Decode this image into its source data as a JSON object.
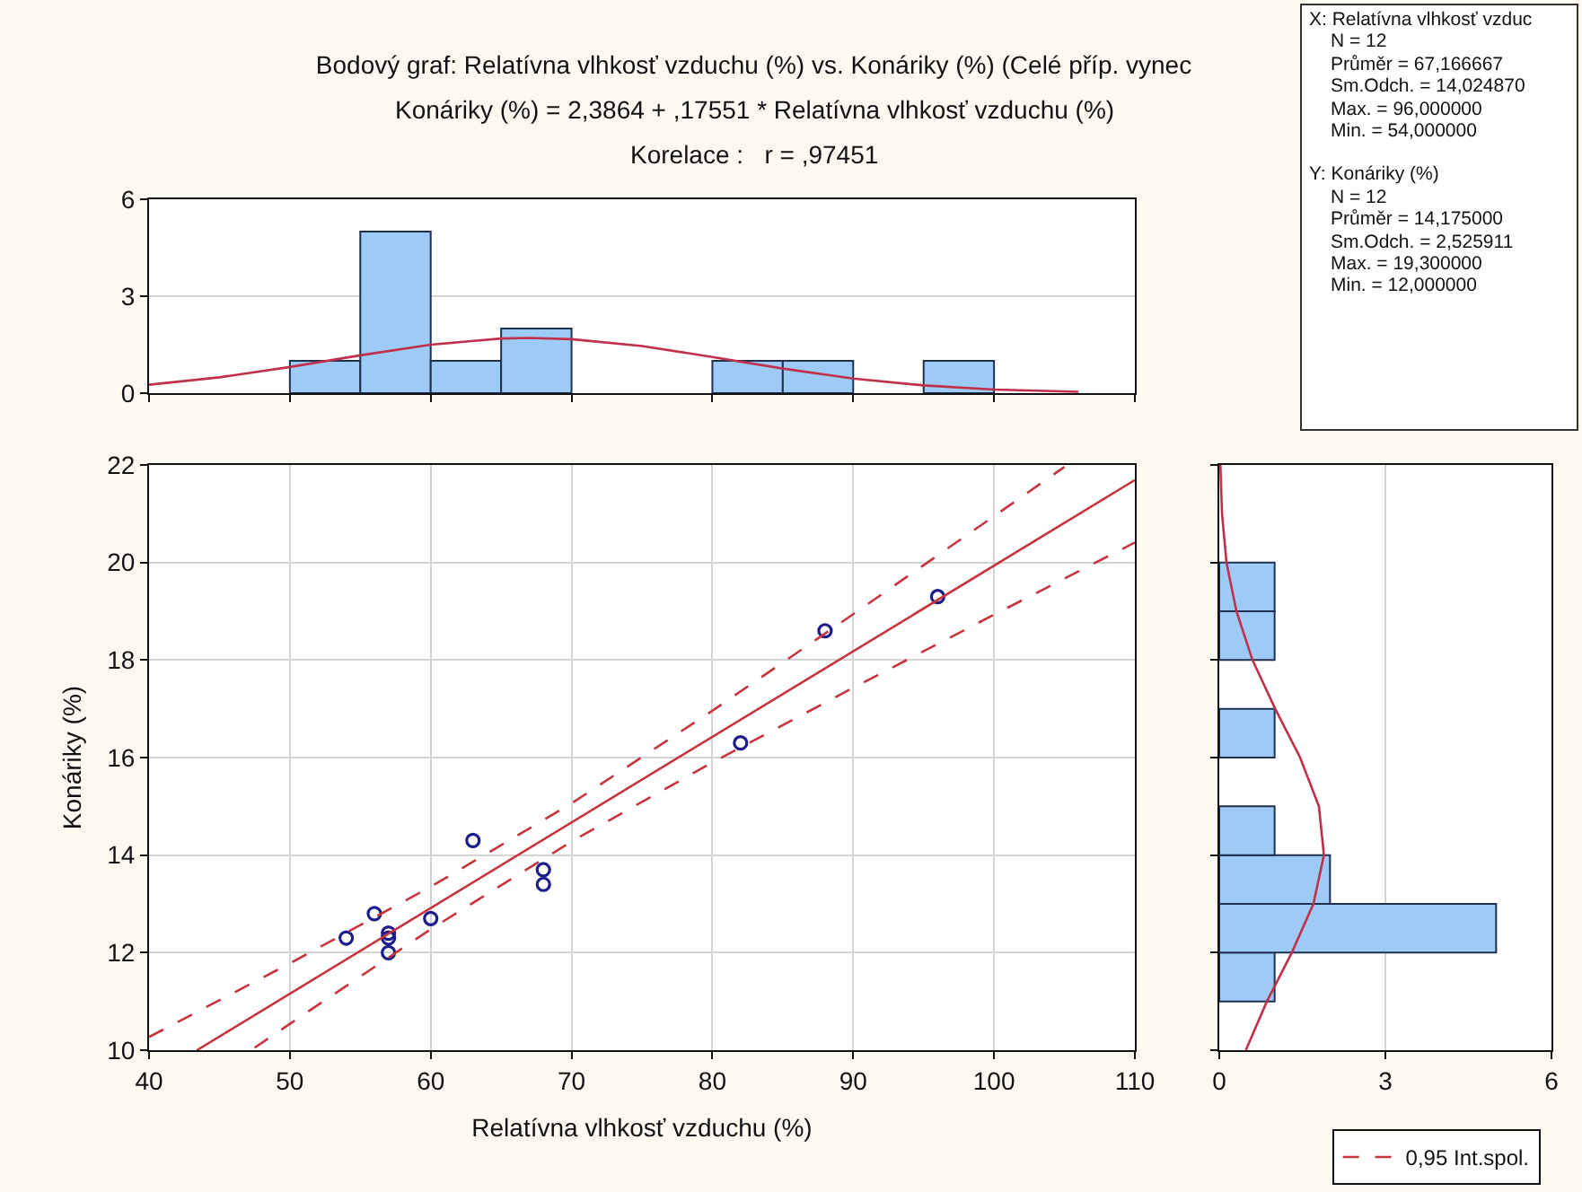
{
  "chart_data": [
    {
      "type": "histogram",
      "title": "Bodový graf: Relatívna vlhkosť vzduchu (%) vs. Konáriky (%) (Celé příp. vynec",
      "subtitle": "Konáriky (%) = 2,3864 + ,17551 * Relatívna vlhkosť vzduchu (%)",
      "annotations": [
        "Korelace :   r = ,97451"
      ],
      "bins": [
        50,
        55,
        60,
        65,
        70,
        75,
        80,
        85,
        90,
        95,
        100
      ],
      "values": [
        1,
        5,
        1,
        2,
        0,
        0,
        1,
        1,
        0,
        1
      ],
      "color": "#9ecbf5",
      "xlim": [
        40,
        110
      ],
      "ylim": [
        0,
        6
      ],
      "yticks": [
        0,
        3,
        6
      ],
      "grid": "y",
      "tick_labels": "y",
      "series": [
        {
          "type": "line",
          "color": "#c0304a",
          "x": [
            40,
            45,
            50,
            55,
            60,
            65,
            67,
            70,
            75,
            80,
            85,
            90,
            95,
            100,
            106
          ],
          "values": [
            0.26,
            0.49,
            0.81,
            1.17,
            1.5,
            1.69,
            1.71,
            1.67,
            1.46,
            1.12,
            0.76,
            0.45,
            0.24,
            0.11,
            0.04
          ]
        }
      ]
    },
    {
      "type": "scatter",
      "xlabel": "Relatívna vlhkosť vzduchu (%)",
      "ylabel": "Konáriky (%)",
      "xlim": [
        40,
        110
      ],
      "ylim": [
        10,
        22
      ],
      "xticks": [
        40,
        50,
        60,
        70,
        80,
        90,
        100,
        110
      ],
      "yticks": [
        10,
        12,
        14,
        16,
        18,
        20,
        22
      ],
      "grid": true,
      "legend": "bottom right",
      "series": [
        {
          "type": "scatter",
          "marker": "circle",
          "color": "#1c1c8a",
          "x": [
            54,
            56,
            57,
            57,
            57,
            60,
            63,
            68,
            68,
            82,
            88,
            96
          ],
          "values": [
            12.3,
            12.8,
            12.4,
            12.3,
            12.0,
            12.7,
            14.3,
            13.7,
            13.4,
            16.3,
            18.6,
            19.3
          ]
        },
        {
          "type": "line",
          "color": "#c8343e",
          "x": [
            43.4,
            110
          ],
          "values": [
            10.0,
            21.69
          ]
        },
        {
          "type": "line",
          "name": "0,95 Int.spol.",
          "color": "#c8343e",
          "line_style": "dashed",
          "x": [
            40,
            50,
            60,
            70,
            80,
            90,
            100,
            105
          ],
          "values": [
            10.27,
            11.78,
            13.35,
            15.06,
            16.96,
            18.94,
            20.95,
            21.96
          ]
        },
        {
          "type": "line",
          "color": "#c8343e",
          "line_style": "dashed",
          "x": [
            47.5,
            50,
            60,
            70,
            80,
            90,
            100,
            110
          ],
          "values": [
            10.05,
            10.54,
            12.48,
            14.28,
            15.9,
            17.43,
            18.93,
            20.41
          ]
        }
      ]
    },
    {
      "type": "histogram",
      "orientation": "horizontal",
      "bins": [
        11,
        12,
        13,
        14,
        15,
        16,
        17,
        18,
        19,
        20
      ],
      "values": [
        1,
        5,
        2,
        1,
        0,
        1,
        0,
        1,
        1
      ],
      "color": "#9ecbf5",
      "xlim": [
        0,
        6
      ],
      "xticks": [
        0,
        3,
        6
      ],
      "ylim": [
        10,
        22
      ],
      "grid": "x",
      "tick_labels": "x",
      "series": [
        {
          "type": "line",
          "color": "#c0304a",
          "x": [
            10,
            11,
            12,
            13,
            14,
            15,
            16,
            17,
            18,
            19,
            20,
            21,
            22
          ],
          "values": [
            0.48,
            0.86,
            1.31,
            1.7,
            1.89,
            1.8,
            1.46,
            1.01,
            0.6,
            0.31,
            0.13,
            0.05,
            0.02
          ]
        }
      ]
    },
    {
      "type": "other",
      "annotations": [
        "X:  Relatívna vlhkosť vzduc",
        "N = 12",
        "Průměr = 67,166667",
        "Sm.Odch. = 14,024870",
        "Max. = 96,000000",
        "Min. = 54,000000",
        "Y:  Konáriky (%)",
        "N = 12",
        "Průměr = 14,175000",
        "Sm.Odch. = 2,525911",
        "Max. = 19,300000",
        "Min. = 12,000000"
      ]
    }
  ]
}
